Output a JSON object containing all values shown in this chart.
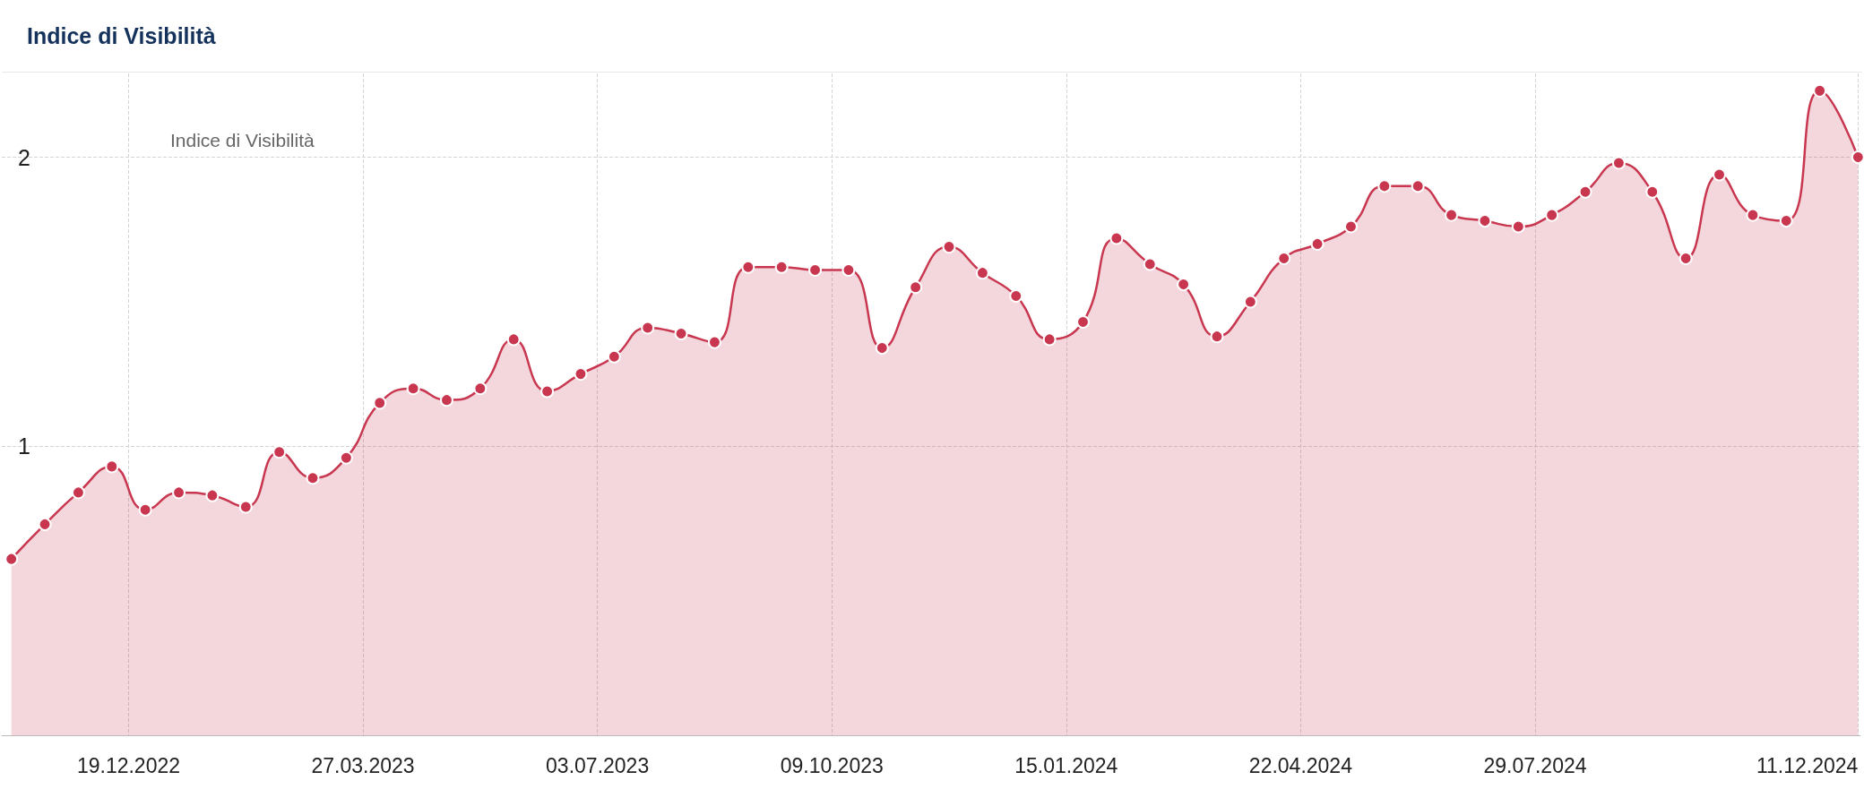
{
  "chart_data": {
    "type": "area",
    "title": "Indice di Visibilità",
    "x": [
      "2022-10-31",
      "2022-11-14",
      "2022-11-28",
      "2022-12-12",
      "2022-12-26",
      "2023-01-09",
      "2023-01-23",
      "2023-02-06",
      "2023-02-20",
      "2023-03-06",
      "2023-03-20",
      "2023-04-03",
      "2023-04-17",
      "2023-05-01",
      "2023-05-15",
      "2023-05-29",
      "2023-06-12",
      "2023-06-26",
      "2023-07-10",
      "2023-07-24",
      "2023-08-07",
      "2023-08-21",
      "2023-09-04",
      "2023-09-18",
      "2023-10-02",
      "2023-10-16",
      "2023-10-30",
      "2023-11-13",
      "2023-11-27",
      "2023-12-11",
      "2023-12-25",
      "2024-01-08",
      "2024-01-22",
      "2024-02-05",
      "2024-02-19",
      "2024-03-04",
      "2024-03-18",
      "2024-04-01",
      "2024-04-15",
      "2024-04-29",
      "2024-05-13",
      "2024-05-27",
      "2024-06-10",
      "2024-06-24",
      "2024-07-08",
      "2024-07-22",
      "2024-08-05",
      "2024-08-19",
      "2024-09-02",
      "2024-09-16",
      "2024-09-30",
      "2024-10-14",
      "2024-10-28",
      "2024-11-11",
      "2024-11-25",
      "2024-12-11"
    ],
    "series": [
      {
        "name": "Indice di Visibilità",
        "color": "#c8374f",
        "values": [
          0.61,
          0.73,
          0.84,
          0.93,
          0.78,
          0.84,
          0.83,
          0.79,
          0.98,
          0.89,
          0.96,
          1.15,
          1.2,
          1.16,
          1.2,
          1.37,
          1.19,
          1.25,
          1.31,
          1.41,
          1.39,
          1.36,
          1.62,
          1.62,
          1.61,
          1.61,
          1.34,
          1.55,
          1.69,
          1.6,
          1.52,
          1.37,
          1.43,
          1.72,
          1.63,
          1.56,
          1.38,
          1.5,
          1.65,
          1.7,
          1.76,
          1.9,
          1.9,
          1.8,
          1.78,
          1.76,
          1.8,
          1.88,
          1.98,
          1.88,
          1.65,
          1.94,
          1.8,
          1.78,
          2.23,
          2.0
        ]
      }
    ],
    "xlim": [
      "2022-10-27",
      "2024-12-12"
    ],
    "xticks": [
      {
        "value": "2022-12-19",
        "label": "19.12.2022"
      },
      {
        "value": "2023-03-27",
        "label": "27.03.2023"
      },
      {
        "value": "2023-07-03",
        "label": "03.07.2023"
      },
      {
        "value": "2023-10-09",
        "label": "09.10.2023"
      },
      {
        "value": "2024-01-15",
        "label": "15.01.2024"
      },
      {
        "value": "2024-04-22",
        "label": "22.04.2024"
      },
      {
        "value": "2024-07-29",
        "label": "29.07.2024"
      },
      {
        "value": "2024-12-11",
        "label": "11.12.2024"
      }
    ],
    "ylim": [
      0,
      2.29
    ],
    "yticks": [
      1,
      2
    ],
    "grid": true,
    "legend": "top left",
    "marker": "circle",
    "line_style": "solid"
  }
}
